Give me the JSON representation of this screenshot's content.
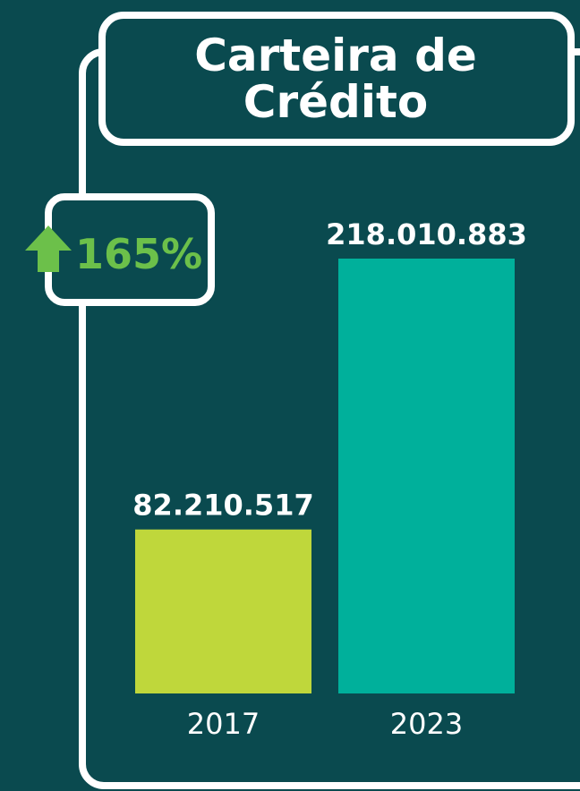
{
  "chart_data": {
    "type": "bar",
    "title": "Carteira de Crédito",
    "categories": [
      "2017",
      "2023"
    ],
    "values": [
      82210517,
      218010883
    ],
    "value_labels": [
      "82.210.517",
      "218.010.883"
    ],
    "colors": [
      "#bfd73b",
      "#00b09b"
    ],
    "annotation": "165%"
  }
}
